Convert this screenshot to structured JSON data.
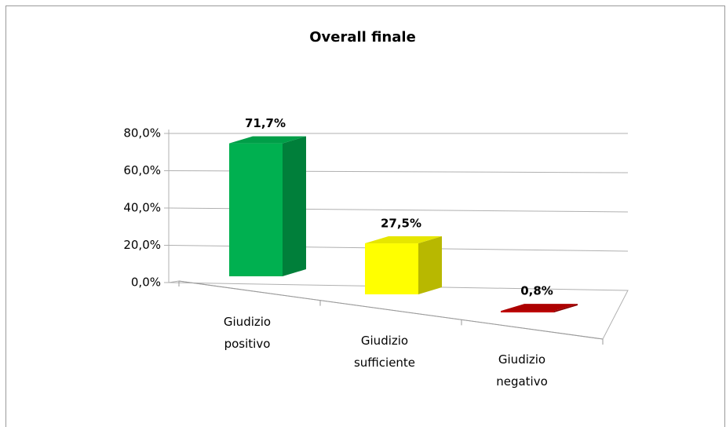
{
  "chart_data": {
    "type": "bar3d",
    "title": "Overall finale",
    "categories": [
      "Giudizio positivo",
      "Giudizio sufficiente",
      "Giudizio negativo"
    ],
    "values": [
      71.7,
      27.5,
      0.8
    ],
    "value_labels": [
      "71,7%",
      "27,5%",
      "0,8%"
    ],
    "colors": [
      "#00b050",
      "#ffff00",
      "#c00000"
    ],
    "ylim": [
      0,
      80
    ],
    "yticks": [
      {
        "value": 0,
        "label": "0,0%"
      },
      {
        "value": 20,
        "label": "20,0%"
      },
      {
        "value": 40,
        "label": "40,0%"
      },
      {
        "value": 60,
        "label": "60,0%"
      },
      {
        "value": 80,
        "label": "80,0%"
      }
    ],
    "grid": true
  }
}
